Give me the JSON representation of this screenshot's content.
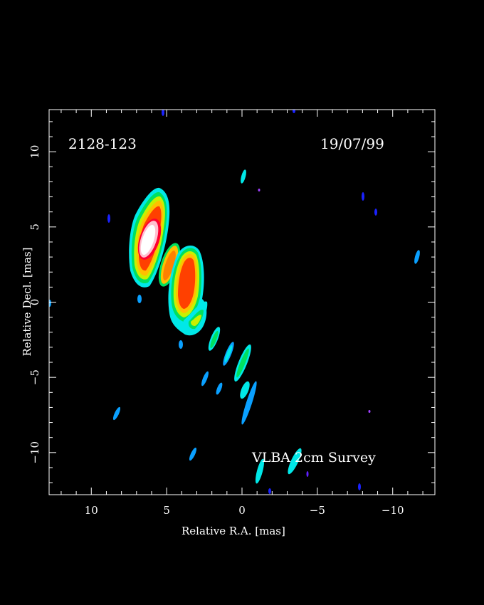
{
  "figure": {
    "source_label": "2128-123",
    "date_label": "19/07/99",
    "survey_label": "VLBA 2cm Survey",
    "x_axis_label": "Relative R.A. [mas]",
    "y_axis_label": "Relative Decl. [mas]",
    "x_ticks": [
      10,
      5,
      0,
      -5,
      -10
    ],
    "x_tick_labels": [
      "10",
      "5",
      "0",
      "−5",
      "−10"
    ],
    "y_ticks": [
      10,
      5,
      0,
      -5,
      -10
    ],
    "y_tick_labels": [
      "10",
      "5",
      "0",
      "−5",
      "−10"
    ],
    "x_range": [
      12.8,
      -12.8
    ],
    "y_range": [
      -12.8,
      12.8
    ],
    "colormap": [
      "#1a22ff",
      "#0aa0ff",
      "#00e8e8",
      "#00e060",
      "#c8f000",
      "#ffc000",
      "#ff4000",
      "#ff0030",
      "#ffffff"
    ]
  }
}
